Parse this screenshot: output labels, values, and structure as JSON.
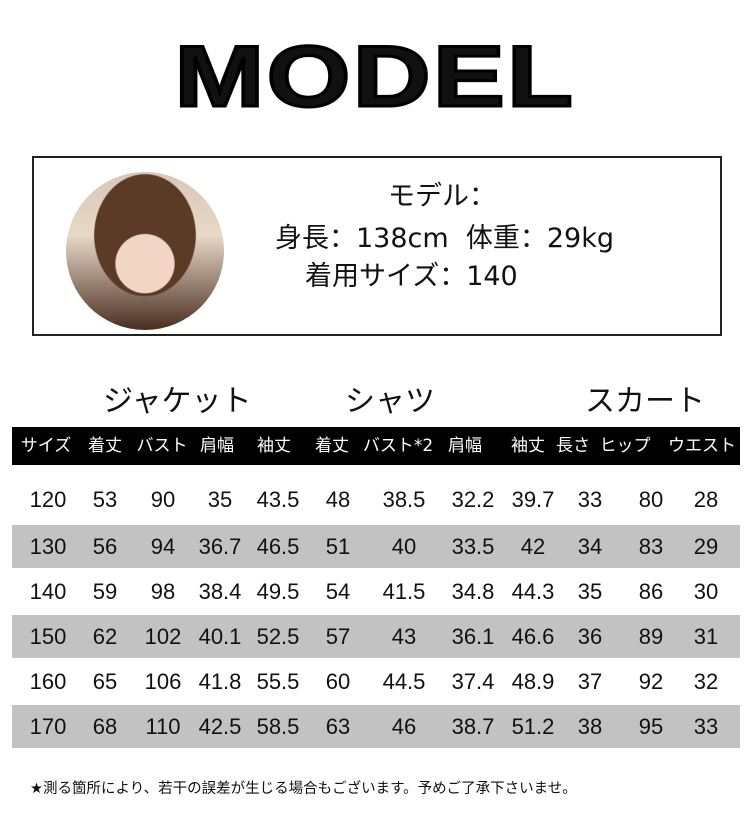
{
  "title": "MODEL",
  "model": {
    "label": "モデル：",
    "stats": "身長：138cm  体重：29kg",
    "size_worn": "着用サイズ：140"
  },
  "sections": [
    "ジャケット",
    "シャツ",
    "スカート"
  ],
  "table": {
    "headers": [
      "サイズ",
      "着丈",
      "バスト",
      "肩幅",
      "袖丈",
      "着丈",
      "バスト*2",
      "肩幅",
      "袖丈",
      "長さ",
      "ヒップ",
      "ウエスト"
    ],
    "rows": [
      [
        "120",
        "53",
        "90",
        "35",
        "43.5",
        "48",
        "38.5",
        "32.2",
        "39.7",
        "33",
        "80",
        "28"
      ],
      [
        "130",
        "56",
        "94",
        "36.7",
        "46.5",
        "51",
        "40",
        "33.5",
        "42",
        "34",
        "83",
        "29"
      ],
      [
        "140",
        "59",
        "98",
        "38.4",
        "49.5",
        "54",
        "41.5",
        "34.8",
        "44.3",
        "35",
        "86",
        "30"
      ],
      [
        "150",
        "62",
        "102",
        "40.1",
        "52.5",
        "57",
        "43",
        "36.1",
        "46.6",
        "36",
        "89",
        "31"
      ],
      [
        "160",
        "65",
        "106",
        "41.8",
        "55.5",
        "60",
        "44.5",
        "37.4",
        "48.9",
        "37",
        "92",
        "32"
      ],
      [
        "170",
        "68",
        "110",
        "42.5",
        "58.5",
        "63",
        "46",
        "38.7",
        "51.2",
        "38",
        "95",
        "33"
      ]
    ],
    "header_bg": "#000000",
    "stripe_color": "#c2c2c2"
  },
  "footnote": "★測る箇所により、若干の誤差が生じる場合もございます。予めご了承下さいませ。"
}
